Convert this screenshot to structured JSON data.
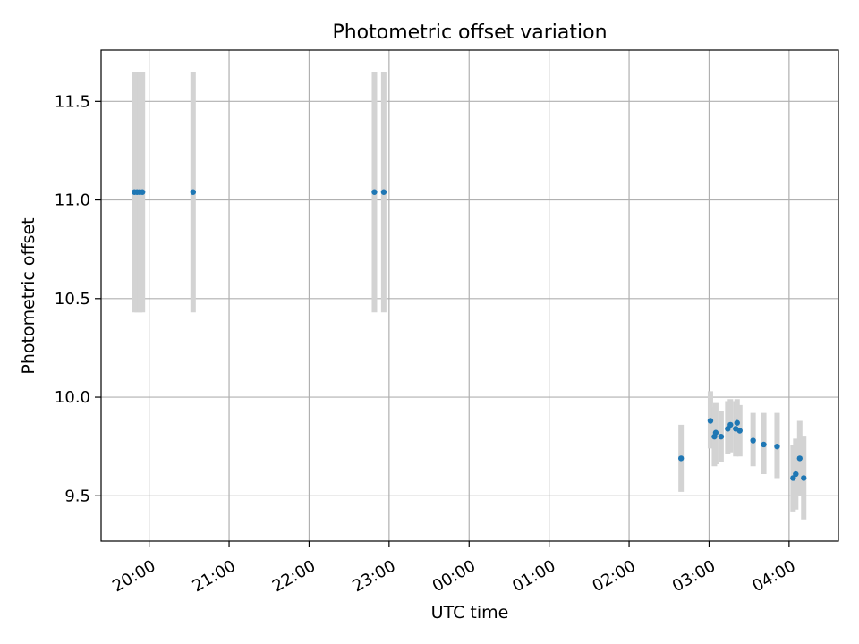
{
  "chart_data": {
    "type": "scatter",
    "title": "Photometric offset variation",
    "xlabel": "UTC time",
    "ylabel": "Photometric offset",
    "x_is_time": true,
    "xlim": [
      "19:24",
      "04:37"
    ],
    "ylim": [
      9.27,
      11.76
    ],
    "xticks": [
      "20:00",
      "21:00",
      "22:00",
      "23:00",
      "00:00",
      "01:00",
      "02:00",
      "03:00",
      "04:00"
    ],
    "yticks": [
      "9.5",
      "10.0",
      "10.5",
      "11.0",
      "11.5"
    ],
    "grid": true,
    "colors": {
      "point": "#1f77b4",
      "errorbar": "#d3d3d3",
      "grid": "#b0b0b0",
      "axes": "#000000"
    },
    "points": [
      {
        "x": "19:49",
        "y": 11.04,
        "ylow": 10.43,
        "yhigh": 11.65
      },
      {
        "x": "19:51",
        "y": 11.04,
        "ylow": 10.43,
        "yhigh": 11.65
      },
      {
        "x": "19:53",
        "y": 11.04,
        "ylow": 10.43,
        "yhigh": 11.65
      },
      {
        "x": "19:55",
        "y": 11.04,
        "ylow": 10.43,
        "yhigh": 11.65
      },
      {
        "x": "20:33",
        "y": 11.04,
        "ylow": 10.43,
        "yhigh": 11.65
      },
      {
        "x": "22:49",
        "y": 11.04,
        "ylow": 10.43,
        "yhigh": 11.65
      },
      {
        "x": "22:56",
        "y": 11.04,
        "ylow": 10.43,
        "yhigh": 11.65
      },
      {
        "x": "02:39",
        "y": 9.69,
        "ylow": 9.52,
        "yhigh": 9.86
      },
      {
        "x": "03:01",
        "y": 9.88,
        "ylow": 9.74,
        "yhigh": 10.03
      },
      {
        "x": "03:04",
        "y": 9.8,
        "ylow": 9.65,
        "yhigh": 9.95
      },
      {
        "x": "03:05",
        "y": 9.82,
        "ylow": 9.66,
        "yhigh": 9.97
      },
      {
        "x": "03:09",
        "y": 9.8,
        "ylow": 9.67,
        "yhigh": 9.93
      },
      {
        "x": "03:14",
        "y": 9.84,
        "ylow": 9.71,
        "yhigh": 9.98
      },
      {
        "x": "03:16",
        "y": 9.86,
        "ylow": 9.72,
        "yhigh": 9.99
      },
      {
        "x": "03:20",
        "y": 9.84,
        "ylow": 9.7,
        "yhigh": 9.98
      },
      {
        "x": "03:21",
        "y": 9.87,
        "ylow": 9.73,
        "yhigh": 9.99
      },
      {
        "x": "03:23",
        "y": 9.83,
        "ylow": 9.7,
        "yhigh": 9.96
      },
      {
        "x": "03:33",
        "y": 9.78,
        "ylow": 9.65,
        "yhigh": 9.92
      },
      {
        "x": "03:41",
        "y": 9.76,
        "ylow": 9.61,
        "yhigh": 9.92
      },
      {
        "x": "03:51",
        "y": 9.75,
        "ylow": 9.59,
        "yhigh": 9.92
      },
      {
        "x": "04:03",
        "y": 9.59,
        "ylow": 9.42,
        "yhigh": 9.76
      },
      {
        "x": "04:05",
        "y": 9.61,
        "ylow": 9.43,
        "yhigh": 9.79
      },
      {
        "x": "04:08",
        "y": 9.69,
        "ylow": 9.5,
        "yhigh": 9.88
      },
      {
        "x": "04:11",
        "y": 9.59,
        "ylow": 9.38,
        "yhigh": 9.8
      }
    ]
  }
}
